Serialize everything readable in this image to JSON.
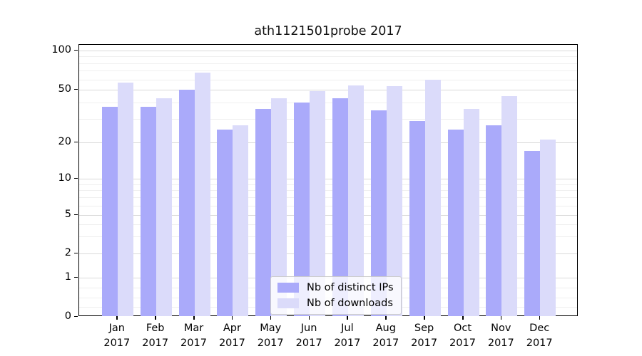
{
  "figure": {
    "title": "ath1121501probe 2017"
  },
  "chart_data": {
    "type": "bar",
    "title": "ath1121501probe 2017",
    "categories": [
      "Jan",
      "Feb",
      "Mar",
      "Apr",
      "May",
      "Jun",
      "Jul",
      "Aug",
      "Sep",
      "Oct",
      "Nov",
      "Dec"
    ],
    "year_label": "2017",
    "series": [
      {
        "name": "Nb of distinct IPs",
        "color": "#aaaafa",
        "values": [
          37,
          37,
          50,
          25,
          36,
          40,
          43,
          35,
          29,
          25,
          27,
          17
        ]
      },
      {
        "name": "Nb of downloads",
        "color": "#dbdbfa",
        "values": [
          57,
          43,
          68,
          27,
          43,
          49,
          54,
          53,
          60,
          36,
          45,
          21
        ]
      }
    ],
    "xlabel": "",
    "ylabel": "",
    "yscale": "log-like (symlog with 0 shown)",
    "yticks": [
      100,
      50,
      20,
      10,
      5,
      2,
      1,
      0
    ],
    "minor_yticks": [
      90,
      80,
      70,
      60,
      40,
      30,
      9,
      8,
      7,
      6,
      4,
      3,
      0.75,
      0.5,
      0.25
    ],
    "ylim": [
      0,
      120
    ],
    "grid": true,
    "legend_position": "lower center"
  },
  "legend": {
    "items": [
      {
        "label": "Nb of distinct IPs",
        "color": "#aaaafa"
      },
      {
        "label": "Nb of downloads",
        "color": "#dbdbfa"
      }
    ]
  }
}
